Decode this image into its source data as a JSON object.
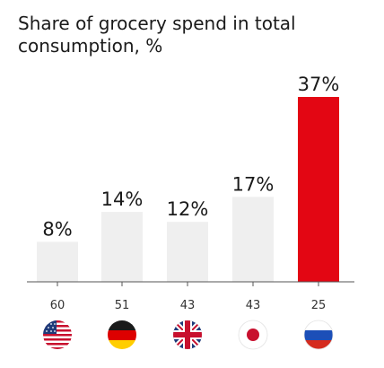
{
  "chart_data": {
    "type": "bar",
    "title": "Share of grocery spend in total consumption, %",
    "categories": [
      "60",
      "51",
      "43",
      "43",
      "25"
    ],
    "values": [
      8,
      14,
      12,
      17,
      37
    ],
    "value_labels": [
      "8%",
      "14%",
      "12%",
      "17%",
      "37%"
    ],
    "flags": [
      "us-flag-icon",
      "germany-flag-icon",
      "uk-flag-icon",
      "japan-flag-icon",
      "russia-flag-icon"
    ],
    "ylim": [
      0,
      37
    ],
    "grid": false,
    "colors": {
      "bar_default": "#efefef",
      "bar_highlight": "#e30613",
      "axis": "#555555"
    },
    "highlight_index": 4
  }
}
